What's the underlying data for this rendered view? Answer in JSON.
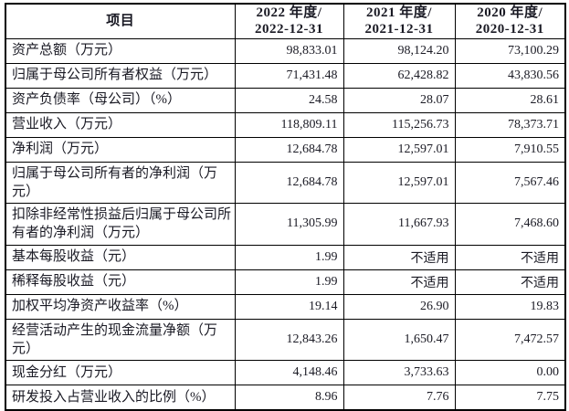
{
  "header": {
    "item": "项目",
    "columns": [
      {
        "line1": "2022 年度/",
        "line2": "2022-12-31"
      },
      {
        "line1": "2021 年度/",
        "line2": "2021-12-31"
      },
      {
        "line1": "2020 年度/",
        "line2": "2020-12-31"
      }
    ]
  },
  "rows": [
    {
      "label": "资产总额（万元）",
      "values": [
        "98,833.01",
        "98,124.20",
        "73,100.29"
      ]
    },
    {
      "label": "归属于母公司所有者权益（万元）",
      "values": [
        "71,431.48",
        "62,428.82",
        "43,830.56"
      ]
    },
    {
      "label": "资产负债率（母公司）（%）",
      "values": [
        "24.58",
        "28.07",
        "28.61"
      ]
    },
    {
      "label": "营业收入（万元）",
      "values": [
        "118,809.11",
        "115,256.73",
        "78,373.71"
      ]
    },
    {
      "label": "净利润（万元）",
      "values": [
        "12,684.78",
        "12,597.01",
        "7,910.55"
      ]
    },
    {
      "label": "归属于母公司所有者的净利润（万元）",
      "values": [
        "12,684.78",
        "12,597.01",
        "7,567.46"
      ]
    },
    {
      "label": "扣除非经常性损益后归属于母公司所有者的净利润（万元）",
      "values": [
        "11,305.99",
        "11,667.93",
        "7,468.60"
      ]
    },
    {
      "label": "基本每股收益（元）",
      "values": [
        "1.99",
        "不适用",
        "不适用"
      ]
    },
    {
      "label": "稀释每股收益（元）",
      "values": [
        "1.99",
        "不适用",
        "不适用"
      ]
    },
    {
      "label": "加权平均净资产收益率（%）",
      "values": [
        "19.14",
        "26.90",
        "19.83"
      ]
    },
    {
      "label": "经营活动产生的现金流量净额（万元）",
      "values": [
        "12,843.26",
        "1,650.47",
        "7,472.57"
      ]
    },
    {
      "label": "现金分红（万元）",
      "values": [
        "4,148.46",
        "3,733.63",
        "0.00"
      ]
    },
    {
      "label": "研发投入占营业收入的比例（%）",
      "values": [
        "8.96",
        "7.76",
        "7.75"
      ]
    }
  ]
}
